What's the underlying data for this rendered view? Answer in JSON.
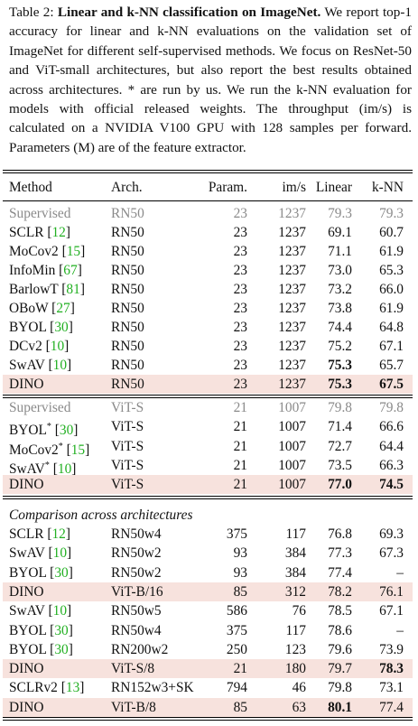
{
  "caption": {
    "label": "Table 2:",
    "title_bold": "Linear and k-NN classification on ImageNet.",
    "body": "We report top-1 accuracy for linear and k-NN evaluations on the validation set of ImageNet for different self-supervised methods. We focus on ResNet-50 and ViT-small architectures, but also report the best results obtained across architectures. * are run by us. We run the k-NN evaluation for models with official released weights. The throughput (im/s) is calculated on a NVIDIA V100 GPU with 128 samples per forward. Parameters (M) are of the feature extractor."
  },
  "headers": {
    "method": "Method",
    "arch": "Arch.",
    "param": "Param.",
    "ims": "im/s",
    "linear": "Linear",
    "knn": "k-NN"
  },
  "section3_title": "Comparison across architectures",
  "rows_rn50": [
    {
      "method": "Supervised",
      "cite": "",
      "star": "",
      "arch": "RN50",
      "param": "23",
      "ims": "1237",
      "linear": "79.3",
      "knn": "79.3",
      "style": "gray"
    },
    {
      "method": "SCLR",
      "cite": "12",
      "star": "",
      "arch": "RN50",
      "param": "23",
      "ims": "1237",
      "linear": "69.1",
      "knn": "60.7",
      "style": ""
    },
    {
      "method": "MoCov2",
      "cite": "15",
      "star": "",
      "arch": "RN50",
      "param": "23",
      "ims": "1237",
      "linear": "71.1",
      "knn": "61.9",
      "style": ""
    },
    {
      "method": "InfoMin",
      "cite": "67",
      "star": "",
      "arch": "RN50",
      "param": "23",
      "ims": "1237",
      "linear": "73.0",
      "knn": "65.3",
      "style": ""
    },
    {
      "method": "BarlowT",
      "cite": "81",
      "star": "",
      "arch": "RN50",
      "param": "23",
      "ims": "1237",
      "linear": "73.2",
      "knn": "66.0",
      "style": ""
    },
    {
      "method": "OBoW",
      "cite": "27",
      "star": "",
      "arch": "RN50",
      "param": "23",
      "ims": "1237",
      "linear": "73.8",
      "knn": "61.9",
      "style": ""
    },
    {
      "method": "BYOL",
      "cite": "30",
      "star": "",
      "arch": "RN50",
      "param": "23",
      "ims": "1237",
      "linear": "74.4",
      "knn": "64.8",
      "style": ""
    },
    {
      "method": "DCv2",
      "cite": "10",
      "star": "",
      "arch": "RN50",
      "param": "23",
      "ims": "1237",
      "linear": "75.2",
      "knn": "67.1",
      "style": ""
    },
    {
      "method": "SwAV",
      "cite": "10",
      "star": "",
      "arch": "RN50",
      "param": "23",
      "ims": "1237",
      "linear": "75.3",
      "knn": "65.7",
      "style": "",
      "bold_linear": true
    },
    {
      "method": "DINO",
      "cite": "",
      "star": "",
      "arch": "RN50",
      "param": "23",
      "ims": "1237",
      "linear": "75.3",
      "knn": "67.5",
      "style": "hl",
      "bold_linear": true,
      "bold_knn": true
    }
  ],
  "rows_vits": [
    {
      "method": "Supervised",
      "cite": "",
      "star": "",
      "arch": "ViT-S",
      "param": "21",
      "ims": "1007",
      "linear": "79.8",
      "knn": "79.8",
      "style": "gray"
    },
    {
      "method": "BYOL",
      "cite": "30",
      "star": "*",
      "arch": "ViT-S",
      "param": "21",
      "ims": "1007",
      "linear": "71.4",
      "knn": "66.6",
      "style": ""
    },
    {
      "method": "MoCov2",
      "cite": "15",
      "star": "*",
      "arch": "ViT-S",
      "param": "21",
      "ims": "1007",
      "linear": "72.7",
      "knn": "64.4",
      "style": ""
    },
    {
      "method": "SwAV",
      "cite": "10",
      "star": "*",
      "arch": "ViT-S",
      "param": "21",
      "ims": "1007",
      "linear": "73.5",
      "knn": "66.3",
      "style": ""
    },
    {
      "method": "DINO",
      "cite": "",
      "star": "",
      "arch": "ViT-S",
      "param": "21",
      "ims": "1007",
      "linear": "77.0",
      "knn": "74.5",
      "style": "hl",
      "bold_linear": true,
      "bold_knn": true
    }
  ],
  "rows_across": [
    {
      "method": "SCLR",
      "cite": "12",
      "star": "",
      "arch": "RN50w4",
      "param": "375",
      "ims": "117",
      "linear": "76.8",
      "knn": "69.3",
      "style": ""
    },
    {
      "method": "SwAV",
      "cite": "10",
      "star": "",
      "arch": "RN50w2",
      "param": "93",
      "ims": "384",
      "linear": "77.3",
      "knn": "67.3",
      "style": ""
    },
    {
      "method": "BYOL",
      "cite": "30",
      "star": "",
      "arch": "RN50w2",
      "param": "93",
      "ims": "384",
      "linear": "77.4",
      "knn": "–",
      "style": ""
    },
    {
      "method": "DINO",
      "cite": "",
      "star": "",
      "arch": "ViT-B/16",
      "param": "85",
      "ims": "312",
      "linear": "78.2",
      "knn": "76.1",
      "style": "hl"
    },
    {
      "method": "SwAV",
      "cite": "10",
      "star": "",
      "arch": "RN50w5",
      "param": "586",
      "ims": "76",
      "linear": "78.5",
      "knn": "67.1",
      "style": ""
    },
    {
      "method": "BYOL",
      "cite": "30",
      "star": "",
      "arch": "RN50w4",
      "param": "375",
      "ims": "117",
      "linear": "78.6",
      "knn": "–",
      "style": ""
    },
    {
      "method": "BYOL",
      "cite": "30",
      "star": "",
      "arch": "RN200w2",
      "param": "250",
      "ims": "123",
      "linear": "79.6",
      "knn": "73.9",
      "style": ""
    },
    {
      "method": "DINO",
      "cite": "",
      "star": "",
      "arch": "ViT-S/8",
      "param": "21",
      "ims": "180",
      "linear": "79.7",
      "knn": "78.3",
      "style": "hl",
      "bold_knn": true
    },
    {
      "method": "SCLRv2",
      "cite": "13",
      "star": "",
      "arch": "RN152w3+SK",
      "param": "794",
      "ims": "46",
      "linear": "79.8",
      "knn": "73.1",
      "style": ""
    },
    {
      "method": "DINO",
      "cite": "",
      "star": "",
      "arch": "ViT-B/8",
      "param": "85",
      "ims": "63",
      "linear": "80.1",
      "knn": "77.4",
      "style": "hl",
      "bold_linear": true
    }
  ]
}
